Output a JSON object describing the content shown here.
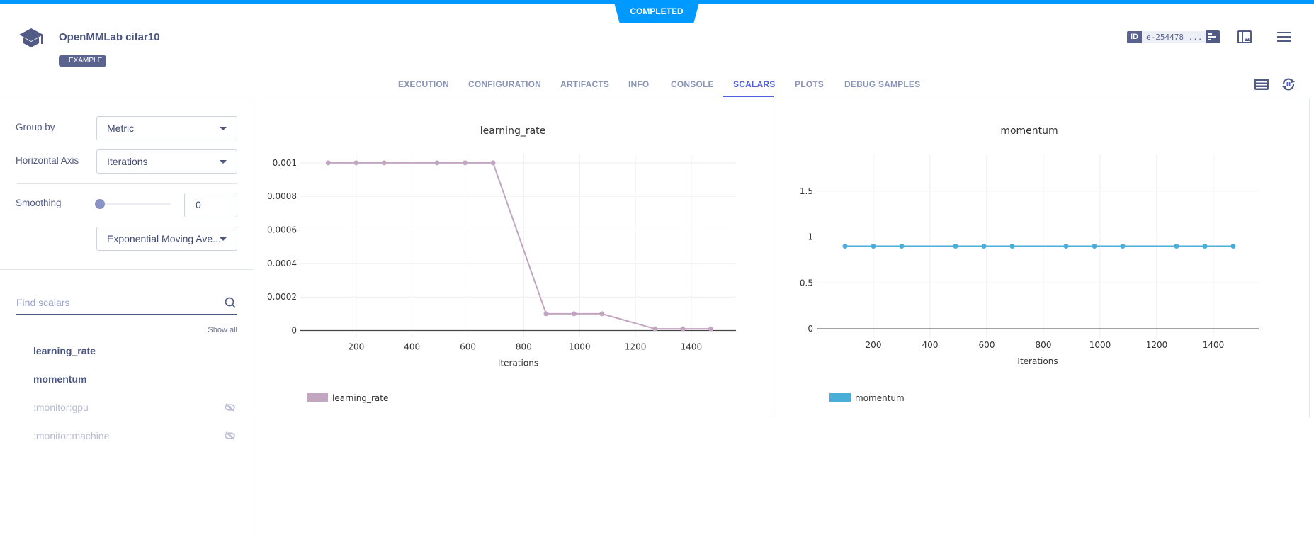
{
  "status": "COMPLETED",
  "header": {
    "title": "OpenMMLab cifar10",
    "badge": "EXAMPLE",
    "id_label": "ID",
    "id_value": "e-254478 ..."
  },
  "tabs": [
    {
      "label": "EXECUTION"
    },
    {
      "label": "CONFIGURATION"
    },
    {
      "label": "ARTIFACTS"
    },
    {
      "label": "INFO"
    },
    {
      "label": "CONSOLE"
    },
    {
      "label": "SCALARS",
      "active": true
    },
    {
      "label": "PLOTS"
    },
    {
      "label": "DEBUG SAMPLES"
    }
  ],
  "sidebar": {
    "group_by_label": "Group by",
    "group_by_value": "Metric",
    "haxis_label": "Horizontal Axis",
    "haxis_value": "Iterations",
    "smoothing_label": "Smoothing",
    "smoothing_value": "0",
    "smoothing_slider": 0,
    "smoothing_method": "Exponential Moving Ave...",
    "search_placeholder": "Find scalars",
    "show_all": "Show all",
    "items": [
      {
        "label": "learning_rate",
        "visible": true
      },
      {
        "label": "momentum",
        "visible": true
      },
      {
        "label": ":monitor:gpu",
        "visible": false
      },
      {
        "label": ":monitor:machine",
        "visible": false
      }
    ]
  },
  "colors": {
    "accent": "#0099ff",
    "active_tab": "#4f5fe0",
    "learning_rate": "#c2a5c0",
    "momentum": "#4aaed9"
  },
  "chart_data": [
    {
      "type": "line",
      "title": "learning_rate",
      "xlabel": "Iterations",
      "ylabel": "",
      "x": [
        100,
        200,
        300,
        490,
        590,
        690,
        880,
        980,
        1080,
        1270,
        1370,
        1470
      ],
      "series": [
        {
          "name": "learning_rate",
          "values": [
            0.001,
            0.001,
            0.001,
            0.001,
            0.001,
            0.001,
            0.0001,
            0.0001,
            0.0001,
            1e-05,
            1e-05,
            1e-05
          ]
        }
      ],
      "xlim": [
        0,
        1560
      ],
      "ylim": [
        -4e-05,
        0.00105
      ],
      "xticks": [
        "200",
        "400",
        "600",
        "800",
        "1000",
        "1200",
        "1400"
      ],
      "yticks": [
        "0",
        "0.0002",
        "0.0004",
        "0.0006",
        "0.0008",
        "0.001"
      ],
      "grid": true,
      "legend": "bottom-left"
    },
    {
      "type": "line",
      "title": "momentum",
      "xlabel": "Iterations",
      "ylabel": "",
      "x": [
        100,
        200,
        300,
        490,
        590,
        690,
        880,
        980,
        1080,
        1270,
        1370,
        1470
      ],
      "series": [
        {
          "name": "momentum",
          "values": [
            0.9,
            0.9,
            0.9,
            0.9,
            0.9,
            0.9,
            0.9,
            0.9,
            0.9,
            0.9,
            0.9,
            0.9
          ]
        }
      ],
      "xlim": [
        0,
        1560
      ],
      "ylim": [
        -0.1,
        1.9
      ],
      "xticks": [
        "200",
        "400",
        "600",
        "800",
        "1000",
        "1200",
        "1400"
      ],
      "yticks": [
        "0",
        "0.5",
        "1",
        "1.5"
      ],
      "grid": true,
      "legend": "bottom-left"
    }
  ]
}
